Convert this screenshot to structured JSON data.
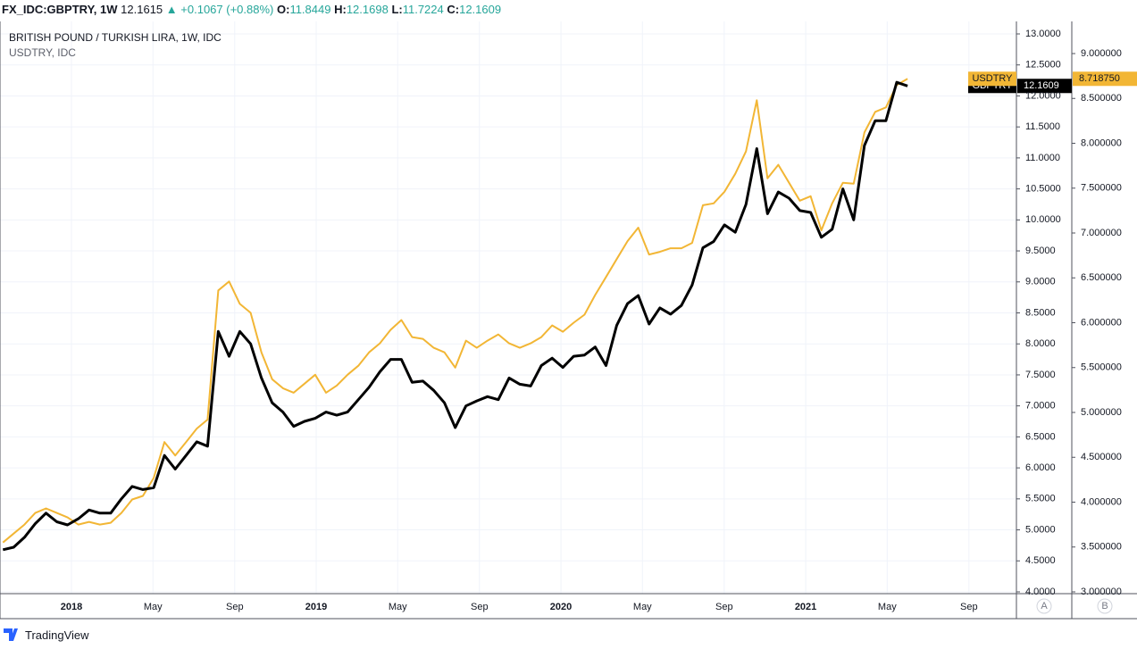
{
  "header": {
    "symbol": "FX_IDC:GBPTRY, 1W",
    "last": "12.1615",
    "arrow": "▲",
    "change": "+0.1067 (+0.88%)",
    "ohlc": [
      {
        "label": "O:",
        "value": "11.8449"
      },
      {
        "label": "H:",
        "value": "12.1698"
      },
      {
        "label": "L:",
        "value": "11.7224"
      },
      {
        "label": "C:",
        "value": "12.1609"
      }
    ]
  },
  "footer": "TradingView",
  "chart_data": {
    "type": "line",
    "title": "BRITISH POUND / TURKISH LIRA, 1W, IDC",
    "subtitle": "USDTRY, IDC",
    "grid": true,
    "axis_buttons": [
      "A",
      "B"
    ],
    "x": [
      2017.72,
      2017.764,
      2017.808,
      2017.852,
      2017.896,
      2017.94,
      2017.984,
      2018.028,
      2018.072,
      2018.116,
      2018.16,
      2018.204,
      2018.248,
      2018.292,
      2018.336,
      2018.38,
      2018.424,
      2018.468,
      2018.512,
      2018.556,
      2018.6,
      2018.644,
      2018.688,
      2018.732,
      2018.776,
      2018.82,
      2018.864,
      2018.908,
      2018.952,
      2018.996,
      2019.04,
      2019.084,
      2019.128,
      2019.172,
      2019.216,
      2019.26,
      2019.304,
      2019.348,
      2019.392,
      2019.436,
      2019.48,
      2019.524,
      2019.568,
      2019.612,
      2019.656,
      2019.7,
      2019.744,
      2019.788,
      2019.832,
      2019.876,
      2019.92,
      2019.964,
      2020.008,
      2020.052,
      2020.096,
      2020.14,
      2020.184,
      2020.228,
      2020.272,
      2020.316,
      2020.36,
      2020.404,
      2020.448,
      2020.492,
      2020.536,
      2020.58,
      2020.624,
      2020.668,
      2020.712,
      2020.756,
      2020.8,
      2020.844,
      2020.888,
      2020.932,
      2020.976,
      2021.02,
      2021.064,
      2021.108,
      2021.152,
      2021.196,
      2021.24,
      2021.284,
      2021.328,
      2021.372,
      2021.416
    ],
    "series": [
      {
        "name": "GBPTRY",
        "color": "#000000",
        "axis": "y",
        "values": [
          4.68,
          4.72,
          4.88,
          5.1,
          5.27,
          5.13,
          5.08,
          5.18,
          5.32,
          5.27,
          5.27,
          5.5,
          5.7,
          5.65,
          5.68,
          6.2,
          5.98,
          6.2,
          6.42,
          6.35,
          8.2,
          7.8,
          8.2,
          8.0,
          7.45,
          7.05,
          6.9,
          6.67,
          6.75,
          6.8,
          6.9,
          6.85,
          6.9,
          7.1,
          7.3,
          7.55,
          7.75,
          7.75,
          7.38,
          7.4,
          7.25,
          7.05,
          6.65,
          7.0,
          7.08,
          7.15,
          7.1,
          7.45,
          7.35,
          7.32,
          7.65,
          7.77,
          7.62,
          7.8,
          7.82,
          7.95,
          7.65,
          8.3,
          8.65,
          8.78,
          8.32,
          8.58,
          8.48,
          8.62,
          8.95,
          9.55,
          9.65,
          9.92,
          9.8,
          10.25,
          11.15,
          10.1,
          10.45,
          10.35,
          10.15,
          10.12,
          9.72,
          9.85,
          10.5,
          10.0,
          11.2,
          11.6,
          11.6,
          12.22,
          12.1609
        ]
      },
      {
        "name": "USDTRY",
        "color": "#f2b635",
        "axis": "y2",
        "last_label": "8.718750",
        "values": [
          3.55,
          3.65,
          3.75,
          3.88,
          3.93,
          3.88,
          3.83,
          3.75,
          3.78,
          3.75,
          3.77,
          3.88,
          4.03,
          4.07,
          4.27,
          4.67,
          4.52,
          4.67,
          4.82,
          4.92,
          6.36,
          6.46,
          6.21,
          6.11,
          5.67,
          5.37,
          5.27,
          5.22,
          5.32,
          5.42,
          5.22,
          5.3,
          5.42,
          5.52,
          5.67,
          5.77,
          5.92,
          6.03,
          5.84,
          5.82,
          5.72,
          5.67,
          5.5,
          5.8,
          5.72,
          5.8,
          5.87,
          5.77,
          5.72,
          5.77,
          5.84,
          5.97,
          5.9,
          6.0,
          6.09,
          6.31,
          6.51,
          6.71,
          6.91,
          7.06,
          6.76,
          6.79,
          6.83,
          6.83,
          6.89,
          7.31,
          7.33,
          7.46,
          7.66,
          7.91,
          8.48,
          7.61,
          7.76,
          7.56,
          7.36,
          7.41,
          7.03,
          7.33,
          7.56,
          7.55,
          8.12,
          8.35,
          8.4,
          8.65,
          8.71875
        ]
      }
    ],
    "xlim": [
      2017.708,
      2021.861
    ],
    "xticks": [
      2018,
      {
        "value": 2018.333,
        "label": "May"
      },
      {
        "value": 2018.667,
        "label": "Sep"
      },
      2019,
      {
        "value": 2019.333,
        "label": "May"
      },
      {
        "value": 2019.667,
        "label": "Sep"
      },
      2020,
      {
        "value": 2020.333,
        "label": "May"
      },
      {
        "value": 2020.667,
        "label": "Sep"
      },
      2021,
      {
        "value": 2021.333,
        "label": "May"
      },
      {
        "value": 2021.667,
        "label": "Sep"
      }
    ],
    "ylim": [
      4,
      13
    ],
    "yticks": [
      {
        "value": 4,
        "label": "4.0000"
      },
      {
        "value": 4.5,
        "label": "4.5000"
      },
      {
        "value": 5,
        "label": "5.0000"
      },
      {
        "value": 5.5,
        "label": "5.5000"
      },
      {
        "value": 6,
        "label": "6.0000"
      },
      {
        "value": 6.5,
        "label": "6.5000"
      },
      {
        "value": 7,
        "label": "7.0000"
      },
      {
        "value": 7.5,
        "label": "7.5000"
      },
      {
        "value": 8,
        "label": "8.0000"
      },
      {
        "value": 8.5,
        "label": "8.5000"
      },
      {
        "value": 9,
        "label": "9.0000"
      },
      {
        "value": 9.5,
        "label": "9.5000"
      },
      {
        "value": 10,
        "label": "10.0000"
      },
      {
        "value": 10.5,
        "label": "10.5000"
      },
      {
        "value": 11,
        "label": "11.0000"
      },
      {
        "value": 11.5,
        "label": "11.5000"
      },
      {
        "value": 12,
        "label": "12.0000"
      },
      {
        "value": 12.5,
        "label": "12.5000"
      },
      {
        "value": 13,
        "label": "13.0000"
      }
    ],
    "y2lim": [
      3,
      9.219
    ],
    "y2ticks": [
      {
        "value": 3,
        "label": "3.000000"
      },
      {
        "value": 3.5,
        "label": "3.500000"
      },
      {
        "value": 4,
        "label": "4.000000"
      },
      {
        "value": 4.5,
        "label": "4.500000"
      },
      {
        "value": 5,
        "label": "5.000000"
      },
      {
        "value": 5.5,
        "label": "5.500000"
      },
      {
        "value": 6,
        "label": "6.000000"
      },
      {
        "value": 6.5,
        "label": "6.500000"
      },
      {
        "value": 7,
        "label": "7.000000"
      },
      {
        "value": 7.5,
        "label": "7.500000"
      },
      {
        "value": 8,
        "label": "8.000000"
      },
      {
        "value": 8.5,
        "label": "8.500000"
      },
      {
        "value": 9,
        "label": "9.000000"
      }
    ]
  }
}
